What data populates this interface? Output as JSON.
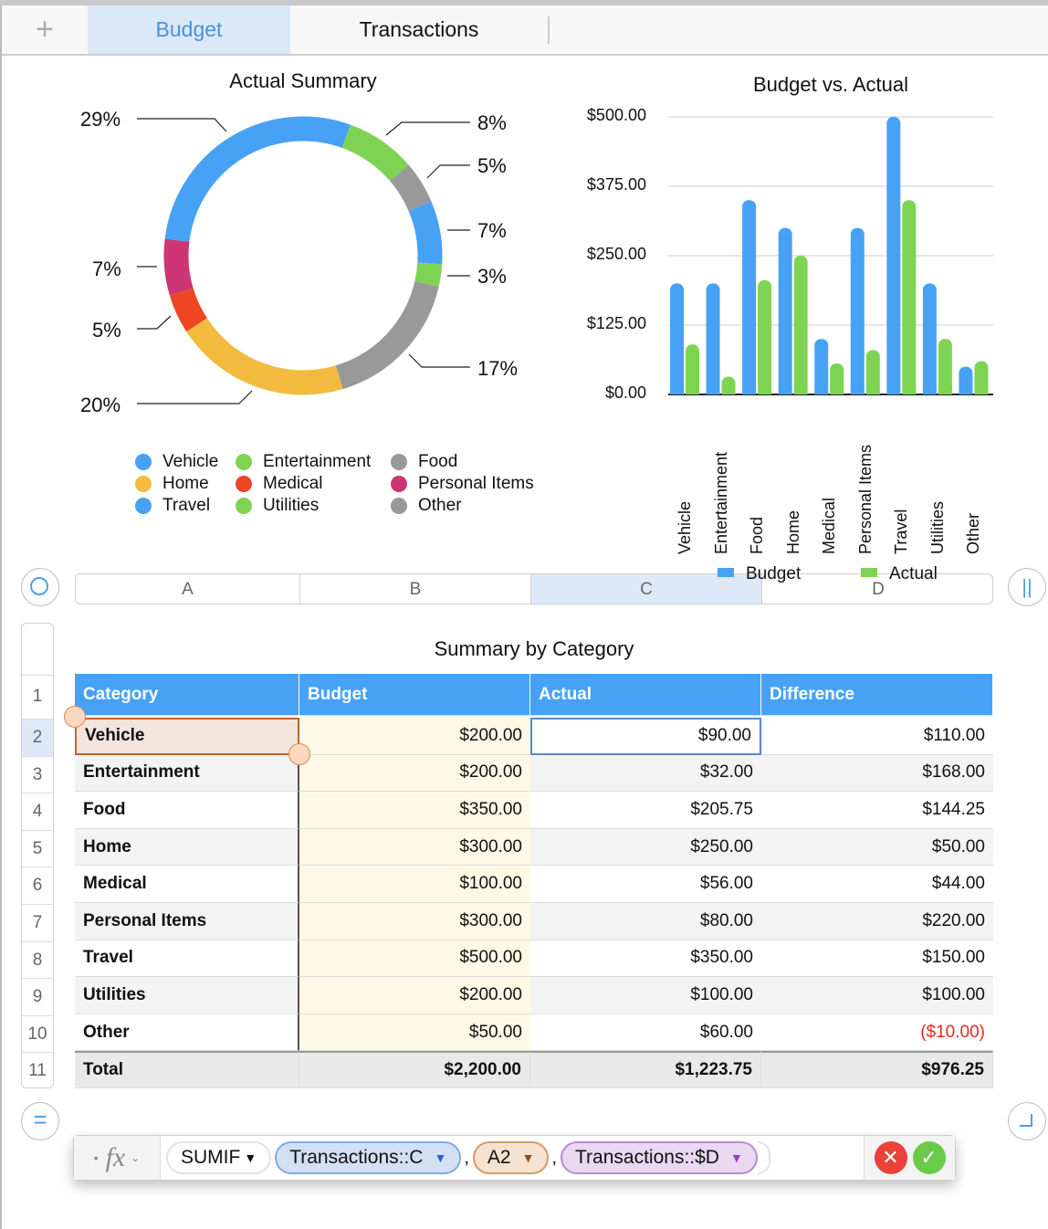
{
  "tabs": {
    "add": "+",
    "items": [
      {
        "label": "Budget",
        "active": true
      },
      {
        "label": "Transactions",
        "active": false
      }
    ]
  },
  "donut": {
    "title": "Actual Summary",
    "labels": [
      "29%",
      "8%",
      "5%",
      "7%",
      "3%",
      "7%",
      "5%",
      "17%",
      "20%"
    ],
    "slices": [
      {
        "name": "Vehicle",
        "value": 90,
        "color": "#47a2f5"
      },
      {
        "name": "Entertainment",
        "value": 32,
        "color": "#7ed452"
      },
      {
        "name": "Food",
        "value": 205.75,
        "color": "#999999"
      },
      {
        "name": "Home",
        "value": 250,
        "color": "#f3bb3e"
      },
      {
        "name": "Medical",
        "value": 56,
        "color": "#ee4523"
      },
      {
        "name": "Personal Items",
        "value": 80,
        "color": "#cd3575"
      },
      {
        "name": "Travel",
        "value": 350,
        "color": "#47a2f5"
      },
      {
        "name": "Utilities",
        "value": 100,
        "color": "#7ed452"
      },
      {
        "name": "Other",
        "value": 60,
        "color": "#999999"
      }
    ]
  },
  "chart_data": {
    "type": "bar",
    "title": "Budget vs. Actual",
    "categories": [
      "Vehicle",
      "Entertainment",
      "Food",
      "Home",
      "Medical",
      "Personal Items",
      "Travel",
      "Utilities",
      "Other"
    ],
    "series": [
      {
        "name": "Budget",
        "color": "#47a2f5",
        "values": [
          200,
          200,
          350,
          300,
          100,
          300,
          500,
          200,
          50
        ]
      },
      {
        "name": "Actual",
        "color": "#7ed452",
        "values": [
          90,
          32,
          205.75,
          250,
          56,
          80,
          350,
          100,
          60
        ]
      }
    ],
    "yticks": [
      "$0.00",
      "$125.00",
      "$250.00",
      "$375.00",
      "$500.00"
    ],
    "ylim": [
      0,
      500
    ],
    "grid": true,
    "legend": "bottom"
  },
  "table": {
    "title": "Summary by Category",
    "columns": [
      "A",
      "B",
      "C",
      "D"
    ],
    "row_numbers": [
      "1",
      "2",
      "3",
      "4",
      "5",
      "6",
      "7",
      "8",
      "9",
      "10",
      "11"
    ],
    "headers": [
      "Category",
      "Budget",
      "Actual",
      "Difference"
    ],
    "rows": [
      [
        "Vehicle",
        "$200.00",
        "$90.00",
        "$110.00"
      ],
      [
        "Entertainment",
        "$200.00",
        "$32.00",
        "$168.00"
      ],
      [
        "Food",
        "$350.00",
        "$205.75",
        "$144.25"
      ],
      [
        "Home",
        "$300.00",
        "$250.00",
        "$50.00"
      ],
      [
        "Medical",
        "$100.00",
        "$56.00",
        "$44.00"
      ],
      [
        "Personal Items",
        "$300.00",
        "$80.00",
        "$220.00"
      ],
      [
        "Travel",
        "$500.00",
        "$350.00",
        "$150.00"
      ],
      [
        "Utilities",
        "$200.00",
        "$100.00",
        "$100.00"
      ],
      [
        "Other",
        "$50.00",
        "$60.00",
        "($10.00)"
      ]
    ],
    "total": [
      "Total",
      "$2,200.00",
      "$1,223.75",
      "$976.25"
    ],
    "negative_color": "#e8291c"
  },
  "formula": {
    "fx": "fx",
    "function": "SUMIF",
    "args": [
      "Transactions::C",
      "A2",
      "Transactions::$D"
    ],
    "sep": ","
  }
}
